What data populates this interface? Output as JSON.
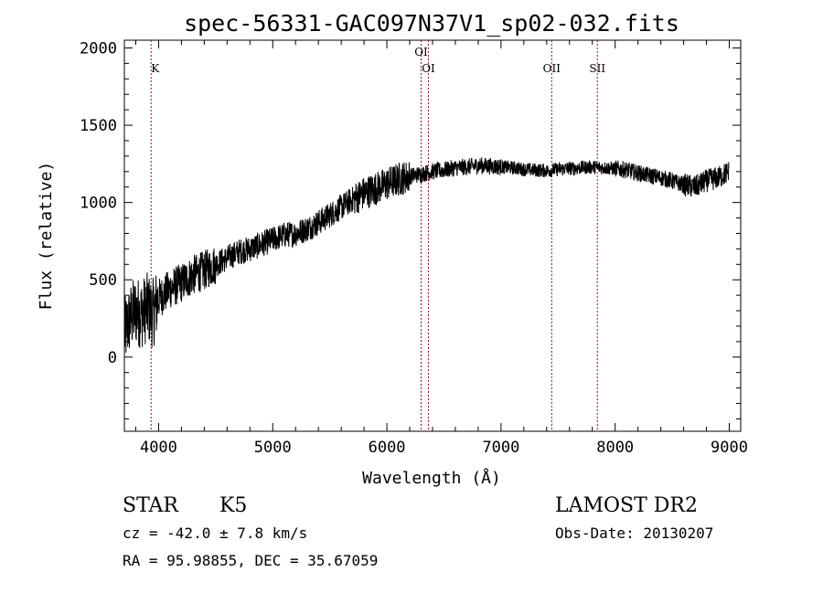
{
  "chart_data": {
    "type": "line",
    "title": "spec-56331-GAC097N37V1_sp02-032.fits",
    "xlabel": "Wavelength (Å)",
    "ylabel": "Flux (relative)",
    "xlim": [
      3700,
      9100
    ],
    "ylim": [
      -480,
      2050
    ],
    "xticks": [
      4000,
      5000,
      6000,
      7000,
      8000,
      9000
    ],
    "xtick_labels": [
      "4000",
      "5000",
      "6000",
      "7000",
      "8000",
      "9000"
    ],
    "yticks": [
      0,
      500,
      1000,
      1500,
      2000
    ],
    "ytick_labels": [
      "0",
      "500",
      "1000",
      "1500",
      "2000"
    ],
    "grid": false,
    "spectral_lines": [
      {
        "name": "K",
        "wavelength": 3934,
        "label_level": "upper"
      },
      {
        "name": "OI",
        "wavelength": 6300,
        "label_level": "top"
      },
      {
        "name": "OI",
        "wavelength": 6364,
        "label_level": "upper"
      },
      {
        "name": "OII",
        "wavelength": 7444,
        "label_level": "upper"
      },
      {
        "name": "SII",
        "wavelength": 7844,
        "label_level": "upper"
      }
    ],
    "series": [
      {
        "x": [
          3700,
          3750,
          3800,
          3850,
          3900,
          3950,
          4000,
          4100,
          4200,
          4300,
          4400,
          4500,
          4600,
          4700,
          4800,
          4900,
          5000,
          5100,
          5200,
          5300,
          5400,
          5500,
          5600,
          5700,
          5800,
          5900,
          6000,
          6100,
          6200,
          6300,
          6400,
          6500,
          6600,
          6700,
          6800,
          6900,
          7000,
          7100,
          7200,
          7300,
          7400,
          7500,
          7600,
          7700,
          7800,
          7900,
          8000,
          8100,
          8200,
          8300,
          8400,
          8500,
          8600,
          8700,
          8800,
          8900,
          8950,
          9000
        ],
        "values": [
          150,
          250,
          300,
          280,
          320,
          280,
          380,
          440,
          480,
          530,
          560,
          600,
          640,
          680,
          700,
          730,
          760,
          790,
          800,
          830,
          870,
          920,
          970,
          1020,
          1060,
          1090,
          1120,
          1150,
          1170,
          1185,
          1200,
          1210,
          1225,
          1230,
          1240,
          1235,
          1230,
          1225,
          1215,
          1210,
          1205,
          1215,
          1220,
          1225,
          1230,
          1225,
          1220,
          1210,
          1190,
          1175,
          1160,
          1140,
          1115,
          1100,
          1140,
          1160,
          1180,
          1200
        ]
      }
    ]
  },
  "info": {
    "object": "STAR",
    "subclass": "K5",
    "survey": "LAMOST DR2",
    "cz": "cz = -42.0 ± 7.8 km/s",
    "obs_date": "Obs-Date: 20130207",
    "coords": "RA =  95.98855, DEC =  35.67059"
  }
}
